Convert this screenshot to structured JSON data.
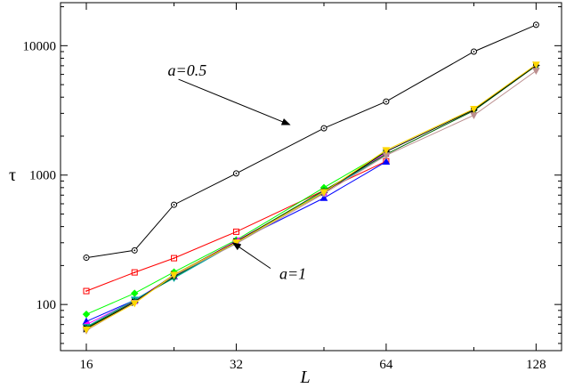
{
  "chart_data": {
    "type": "line",
    "title": "",
    "xlabel": "L",
    "ylabel": "τ",
    "xscale": "log2",
    "yscale": "log10",
    "xlim": [
      14.2,
      144
    ],
    "ylim": [
      44,
      21500
    ],
    "x_ticks": [
      16,
      32,
      64,
      128
    ],
    "x_tick_labels": [
      "16",
      "32",
      "64",
      "128"
    ],
    "y_ticks": [
      100,
      1000,
      10000
    ],
    "y_tick_labels": [
      "100",
      "1000",
      "10000"
    ],
    "grid": false,
    "legend": "none",
    "series": [
      {
        "color": "#000000",
        "marker": "circle-dot",
        "x": [
          16,
          20,
          24,
          32,
          48,
          64,
          96,
          128
        ],
        "y": [
          230,
          262,
          590,
          1030,
          2300,
          3700,
          9000,
          14500
        ]
      },
      {
        "color": "#ff0000",
        "marker": "square",
        "x": [
          16,
          20,
          24,
          32,
          64
        ],
        "y": [
          127,
          177,
          228,
          365,
          1280
        ]
      },
      {
        "color": "#00ff00",
        "marker": "diamond",
        "x": [
          16,
          20,
          24,
          32,
          48,
          64
        ],
        "y": [
          84,
          122,
          178,
          315,
          800,
          1520
        ]
      },
      {
        "color": "#0000ff",
        "marker": "triangle-up",
        "x": [
          16,
          20,
          24,
          32,
          48,
          64
        ],
        "y": [
          74,
          108,
          165,
          305,
          665,
          1270
        ]
      },
      {
        "color": "#ff00ff",
        "marker": "triangle-left",
        "x": [
          16,
          20,
          24,
          32,
          48,
          64
        ],
        "y": [
          70,
          107,
          168,
          310,
          735,
          1480
        ]
      },
      {
        "color": "#00aaaa",
        "marker": "triangle-down",
        "x": [
          16,
          20,
          24,
          32,
          48,
          64
        ],
        "y": [
          67,
          109,
          160,
          300,
          745,
          1420
        ]
      },
      {
        "color": "#006400",
        "marker": "star",
        "x": [
          16,
          20,
          24,
          32,
          48,
          64,
          96,
          128
        ],
        "y": [
          66,
          106,
          163,
          305,
          760,
          1450,
          3150,
          7000
        ]
      },
      {
        "color": "#000000",
        "marker": "triangle-right",
        "x": [
          16,
          20,
          24,
          32,
          48,
          64,
          96,
          128
        ],
        "y": [
          65,
          104,
          170,
          305,
          735,
          1520,
          3200,
          7050
        ]
      },
      {
        "color": "#bc8f8f",
        "marker": "triangle-down",
        "x": [
          16,
          20,
          24,
          32,
          48,
          64,
          96,
          128
        ],
        "y": [
          63,
          103,
          168,
          295,
          720,
          1420,
          2900,
          6400
        ]
      },
      {
        "color": "#ffd700",
        "marker": "triangle-down",
        "x": [
          16,
          20,
          24,
          32,
          48,
          64,
          96,
          128
        ],
        "y": [
          64,
          102,
          170,
          302,
          740,
          1560,
          3250,
          7150
        ]
      }
    ],
    "annotations": [
      {
        "text": "a=0.5",
        "arrow_from": [
          24.5,
          5500
        ],
        "arrow_to": [
          41,
          2450
        ]
      },
      {
        "text": "a=1",
        "arrow_from": [
          37.5,
          190
        ],
        "arrow_to": [
          31.5,
          300
        ]
      }
    ]
  }
}
